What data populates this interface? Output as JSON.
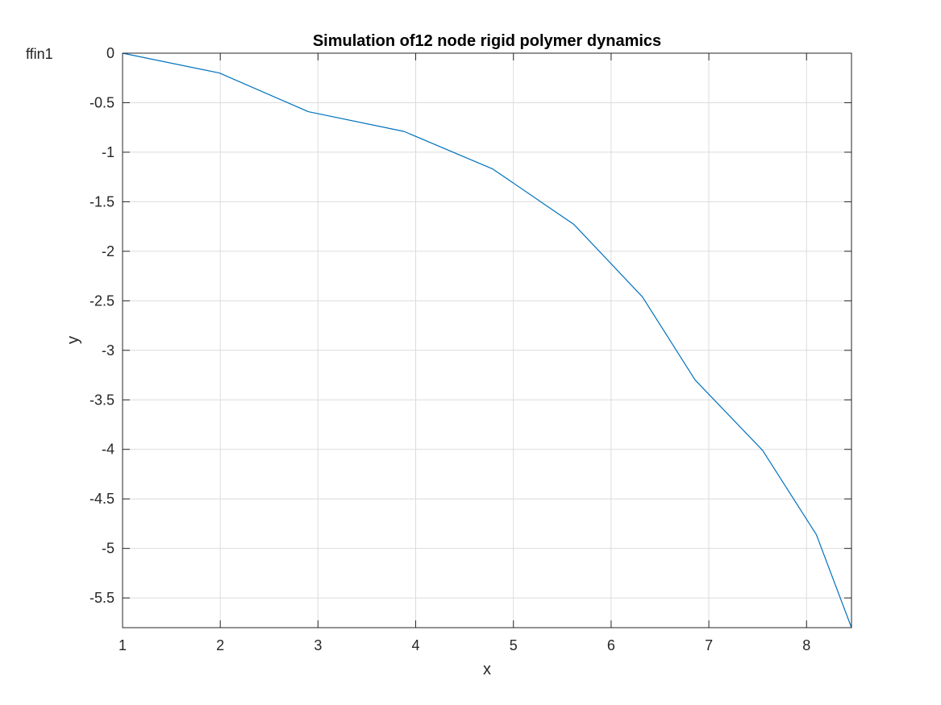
{
  "figure_label": "ffin1",
  "chart_data": {
    "type": "line",
    "title": "Simulation of12 node rigid polymer dynamics",
    "xlabel": "x",
    "ylabel": "y",
    "xlim": [
      1,
      8.46
    ],
    "ylim": [
      -5.8,
      0
    ],
    "xticks": [
      1,
      2,
      3,
      4,
      5,
      6,
      7,
      8
    ],
    "yticks": [
      0,
      -0.5,
      -1,
      -1.5,
      -2,
      -2.5,
      -3,
      -3.5,
      -4,
      -4.5,
      -5,
      -5.5
    ],
    "xtick_labels": [
      "1",
      "2",
      "3",
      "4",
      "5",
      "6",
      "7",
      "8"
    ],
    "ytick_labels": [
      "0",
      "-0.5",
      "-1",
      "-1.5",
      "-2",
      "-2.5",
      "-3",
      "-3.5",
      "-4",
      "-4.5",
      "-5",
      "-5.5"
    ],
    "grid": true,
    "box": true,
    "series": [
      {
        "color": "#0072BD",
        "x": [
          1,
          1.99,
          2.9,
          3.88,
          4.79,
          5.62,
          6.32,
          6.86,
          7.55,
          8.1,
          8.46
        ],
        "y": [
          0,
          -0.2,
          -0.59,
          -0.79,
          -1.17,
          -1.73,
          -2.46,
          -3.3,
          -4.01,
          -4.86,
          -5.8
        ]
      }
    ]
  }
}
